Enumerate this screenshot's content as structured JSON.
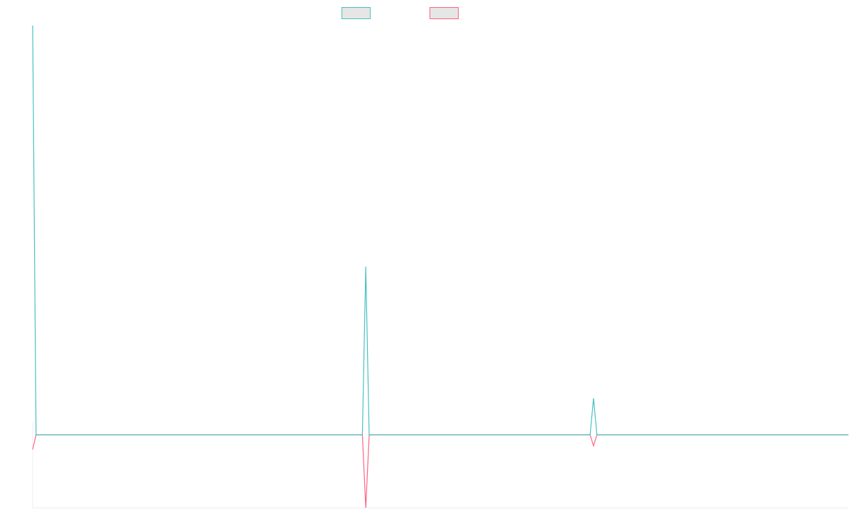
{
  "chart_data": {
    "type": "line",
    "title": "",
    "xlabel": "",
    "ylabel": "",
    "legend": {
      "placement": "top-center",
      "labels_visible": false
    },
    "grid": false,
    "x": [
      0,
      1,
      2,
      97,
      98,
      99,
      164,
      165,
      166,
      240
    ],
    "xlim": [
      0,
      240
    ],
    "ylim": [
      -20,
      112
    ],
    "series": [
      {
        "color": "#4bc0c0",
        "fill": "#e6e6e6",
        "values": [
          112,
          0,
          0,
          0,
          46,
          0,
          0,
          10,
          0,
          0
        ]
      },
      {
        "color": "#ff6384",
        "fill": "#e6e6e6",
        "values": [
          -4,
          0,
          0,
          0,
          -20,
          0,
          0,
          -3,
          0,
          0
        ]
      }
    ]
  }
}
